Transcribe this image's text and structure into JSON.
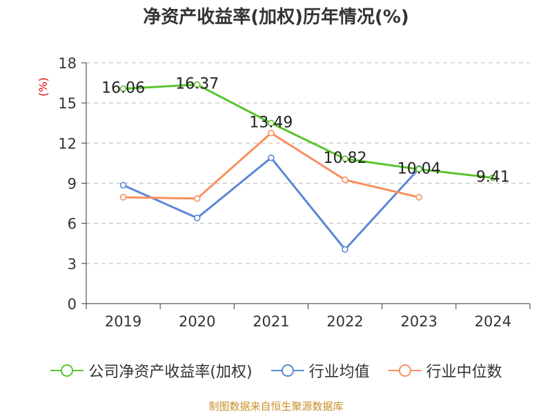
{
  "colors": {
    "company": "#5ac42d",
    "industry_avg": "#5b87d6",
    "industry_median": "#f7905d",
    "axis": "#333333",
    "grid": "#bbbbbb",
    "unit": "#dd0000",
    "footer": "#c8902a"
  },
  "footer": "制图数据来自恒生聚源数据库",
  "chart_data": {
    "type": "line",
    "title": "净资产收益率(加权)历年情况(%)",
    "ylabel": "(%)",
    "xlabel": "",
    "categories": [
      "2019",
      "2020",
      "2021",
      "2022",
      "2023",
      "2024"
    ],
    "ylim": [
      0,
      18
    ],
    "yticks": [
      0,
      3,
      6,
      9,
      12,
      15,
      18
    ],
    "grid": true,
    "legend_position": "bottom",
    "series": [
      {
        "name": "公司净资产收益率(加权)",
        "color_key": "company",
        "show_labels": true,
        "values": [
          16.06,
          16.37,
          13.49,
          10.82,
          10.04,
          9.41
        ]
      },
      {
        "name": "行业均值",
        "color_key": "industry_avg",
        "show_labels": false,
        "values": [
          8.85,
          6.4,
          10.9,
          4.05,
          10.1,
          null
        ]
      },
      {
        "name": "行业中位数",
        "color_key": "industry_median",
        "show_labels": false,
        "values": [
          7.95,
          7.85,
          12.75,
          9.25,
          7.95,
          null
        ]
      }
    ]
  }
}
